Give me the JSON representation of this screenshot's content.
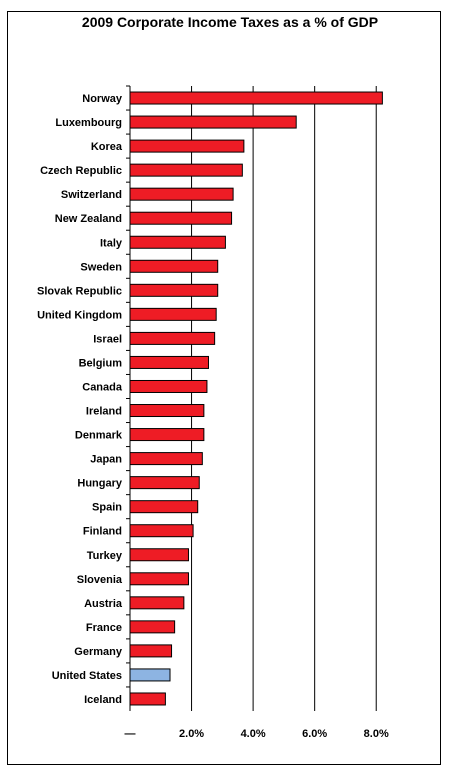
{
  "chart_data": {
    "type": "bar",
    "orientation": "horizontal",
    "title": "2009 Corporate Income Taxes as a % of GDP",
    "categories": [
      "Norway",
      "Luxembourg",
      "Korea",
      "Czech Republic",
      "Switzerland",
      "New Zealand",
      "Italy",
      "Sweden",
      "Slovak Republic",
      "United Kingdom",
      "Israel",
      "Belgium",
      "Canada",
      "Ireland",
      "Denmark",
      "Japan",
      "Hungary",
      "Spain",
      "Finland",
      "Turkey",
      "Slovenia",
      "Austria",
      "France",
      "Germany",
      "United States",
      "Iceland"
    ],
    "values": [
      8.2,
      5.4,
      3.7,
      3.65,
      3.35,
      3.3,
      3.1,
      2.85,
      2.85,
      2.8,
      2.75,
      2.55,
      2.5,
      2.4,
      2.4,
      2.35,
      2.25,
      2.2,
      2.05,
      1.9,
      1.9,
      1.75,
      1.45,
      1.35,
      1.3,
      1.15
    ],
    "highlight": "United States",
    "colors": {
      "default": "#ee1c25",
      "highlight": "#8db4e2",
      "grid": "#000000"
    },
    "xlim": [
      0,
      9
    ],
    "xticks": [
      0,
      2,
      4,
      6,
      8
    ],
    "xtick_labels": [
      "—",
      "2.0%",
      "4.0%",
      "6.0%",
      "8.0%"
    ],
    "grid": true
  }
}
